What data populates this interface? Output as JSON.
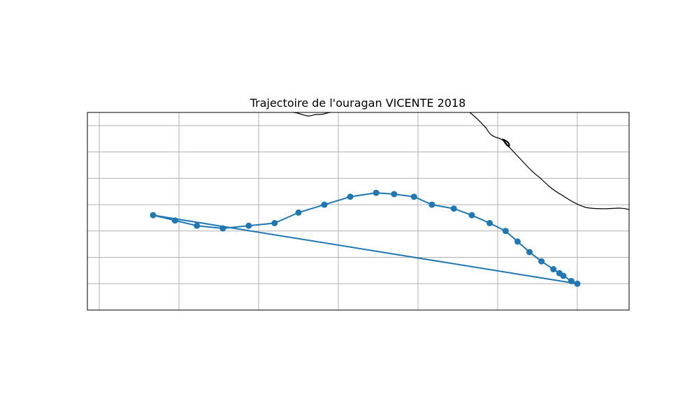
{
  "chart_data": {
    "type": "line",
    "title": "Trajectoire de l'ouragan VICENTE 2018",
    "xlabel": "",
    "ylabel": "",
    "xlim": [
      -112.2,
      -98.6
    ],
    "ylim": [
      9.0,
      16.5
    ],
    "gridlines_x": [
      -111.9,
      -109.9,
      -107.9,
      -105.9,
      -103.9,
      -101.9,
      -99.9
    ],
    "gridlines_y": [
      10,
      11,
      12,
      13,
      14,
      15,
      16
    ],
    "grid": true,
    "series": [
      {
        "name": "",
        "color": "#1f77b4",
        "marker": "circle",
        "x": [
          -99.9,
          -100.05,
          -100.25,
          -100.35,
          -100.5,
          -100.8,
          -101.1,
          -101.4,
          -101.7,
          -102.1,
          -102.55,
          -103.0,
          -103.55,
          -104.0,
          -104.5,
          -104.95,
          -105.6,
          -106.25,
          -106.9,
          -107.5,
          -108.15,
          -108.8,
          -109.45,
          -110.0,
          -110.55
        ],
        "y": [
          10.0,
          10.1,
          10.3,
          10.4,
          10.55,
          10.85,
          11.2,
          11.6,
          12.0,
          12.3,
          12.6,
          12.85,
          13.0,
          13.3,
          13.4,
          13.45,
          13.3,
          13.0,
          12.7,
          12.3,
          12.2,
          12.1,
          12.2,
          12.4,
          12.6
        ]
      }
    ]
  }
}
